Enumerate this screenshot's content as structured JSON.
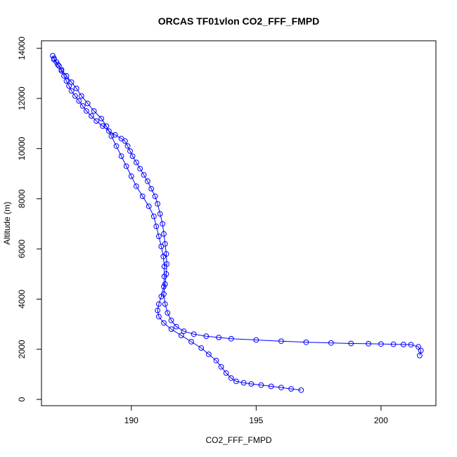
{
  "chart_data": {
    "type": "scatter",
    "title": "ORCAS TF01vlon CO2_FFF_FMPD",
    "xlabel": "CO2_FFF_FMPD",
    "ylabel": "Altitude (m)",
    "xlim": [
      186.4,
      202.2
    ],
    "ylim": [
      -250,
      14300
    ],
    "xticks": [
      190,
      195,
      200
    ],
    "yticks": [
      0,
      2000,
      4000,
      6000,
      8000,
      10000,
      12000,
      14000
    ],
    "grid": false,
    "legend": "none",
    "colors": {
      "series": "#0000ff",
      "axis": "#000000"
    },
    "series": [
      {
        "marker": "open-circle",
        "connected": true,
        "x": [
          186.85,
          186.9,
          187.0,
          187.1,
          187.2,
          187.3,
          187.4,
          187.5,
          187.6,
          187.75,
          187.9,
          188.05,
          188.2,
          188.4,
          188.6,
          188.85,
          189.1,
          189.35,
          189.6,
          189.75,
          189.85,
          189.95,
          190.05,
          190.2,
          190.35,
          190.5,
          190.65,
          190.8,
          190.95,
          191.05,
          191.15,
          191.25,
          191.3,
          191.35,
          191.4,
          191.42,
          191.4,
          191.35,
          191.3,
          191.35,
          191.45,
          191.6,
          191.8,
          192.1,
          192.5,
          193.0,
          193.5,
          194.0,
          195.0,
          196.0,
          197.0,
          198.0,
          198.8,
          199.5,
          200.0,
          200.5,
          200.9,
          201.2,
          201.5,
          201.6,
          201.55
        ],
        "y": [
          13700,
          13600,
          13450,
          13300,
          13100,
          12900,
          12700,
          12500,
          12300,
          12100,
          11900,
          11700,
          11500,
          11300,
          11100,
          10900,
          10700,
          10550,
          10400,
          10300,
          10100,
          9900,
          9700,
          9450,
          9200,
          8950,
          8700,
          8400,
          8100,
          7800,
          7400,
          7000,
          6600,
          6200,
          5800,
          5400,
          5000,
          4600,
          4200,
          3800,
          3450,
          3150,
          2900,
          2720,
          2600,
          2520,
          2470,
          2420,
          2370,
          2320,
          2280,
          2250,
          2230,
          2220,
          2210,
          2200,
          2190,
          2180,
          2100,
          1950,
          1750
        ]
      },
      {
        "marker": "open-circle",
        "connected": true,
        "x": [
          186.9,
          187.05,
          187.2,
          187.4,
          187.6,
          187.8,
          188.0,
          188.25,
          188.5,
          188.8,
          189.0,
          189.2,
          189.4,
          189.6,
          189.8,
          190.0,
          190.2,
          190.45,
          190.7,
          190.9,
          191.0,
          191.1,
          191.2,
          191.28,
          191.32,
          191.32,
          191.3,
          191.2,
          191.1,
          191.05,
          191.1,
          191.3,
          191.6,
          192.0,
          192.4,
          192.8,
          193.1,
          193.4,
          193.6,
          193.8,
          194.0,
          194.2,
          194.5,
          194.8,
          195.2,
          195.6,
          196.0,
          196.4,
          196.8
        ],
        "y": [
          13550,
          13350,
          13150,
          12900,
          12650,
          12400,
          12100,
          11800,
          11500,
          11200,
          10900,
          10500,
          10100,
          9700,
          9300,
          8900,
          8500,
          8100,
          7700,
          7300,
          6900,
          6500,
          6100,
          5700,
          5300,
          4900,
          4500,
          4100,
          3800,
          3550,
          3300,
          3050,
          2800,
          2550,
          2300,
          2050,
          1800,
          1550,
          1300,
          1050,
          850,
          720,
          660,
          620,
          570,
          520,
          470,
          420,
          370
        ]
      }
    ]
  }
}
